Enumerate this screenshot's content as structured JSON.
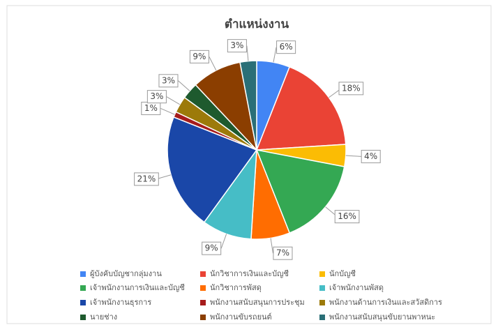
{
  "chart_data": {
    "type": "pie",
    "title": "ตำแหน่งงาน",
    "categories": [
      "ผู้บังคับบัญชากลุ่มงาน",
      "นักวิชาการเงินและบัญชี",
      "นักบัญชี",
      "เจ้าพนักงานการเงินและบัญชี",
      "นักวิชาการพัสดุ",
      "เจ้าพนักงานพัสดุ",
      "เจ้าพนักงานธุรการ",
      "พนักงานสนับสนุนการประชุม",
      "พนักงานด้านการเงินและสวัสดิการ",
      "นายช่าง",
      "พนักงานขับรถยนต์",
      "พนักงานสนับสนุนขับยานพาหนะ"
    ],
    "values": [
      6,
      18,
      4,
      16,
      7,
      9,
      21,
      1,
      3,
      3,
      9,
      3
    ],
    "value_labels": [
      "6%",
      "18%",
      "4%",
      "16%",
      "7%",
      "9%",
      "21%",
      "1%",
      "3%",
      "3%",
      "9%",
      "3%"
    ],
    "colors": [
      "#4285f4",
      "#ea4335",
      "#fbbc04",
      "#34a853",
      "#ff6d01",
      "#46bdc6",
      "#1a47a8",
      "#a61c1c",
      "#9c7a0a",
      "#1e5a2e",
      "#8b3e00",
      "#2a6f77"
    ],
    "legend": "bottom"
  }
}
